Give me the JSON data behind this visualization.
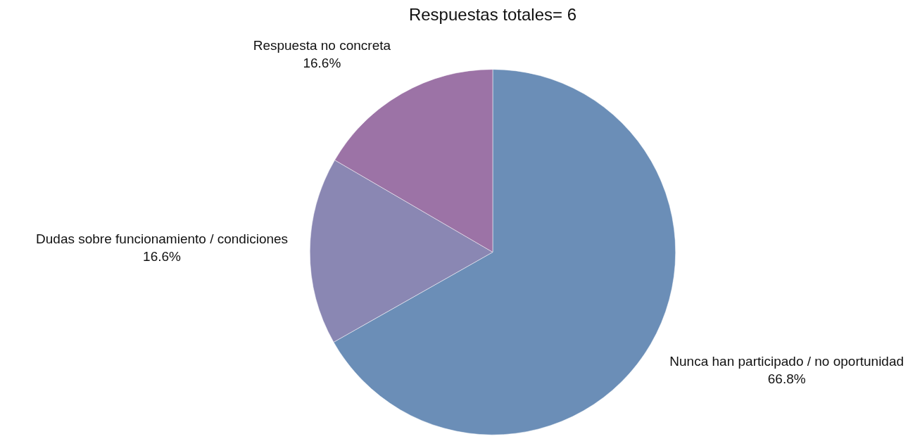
{
  "chart_data": {
    "type": "pie",
    "title": "Respuestas totales= 6",
    "categories": [
      "Nunca han participado / no oportunidad",
      "Dudas sobre funcionamiento / condiciones",
      "Respuesta no concreta"
    ],
    "values": [
      66.8,
      16.6,
      16.6
    ],
    "colors": [
      "#6b8eb7",
      "#8a87b3",
      "#9c73a6"
    ],
    "value_labels": [
      "66.8%",
      "16.6%",
      "16.6%"
    ],
    "legend": false
  }
}
